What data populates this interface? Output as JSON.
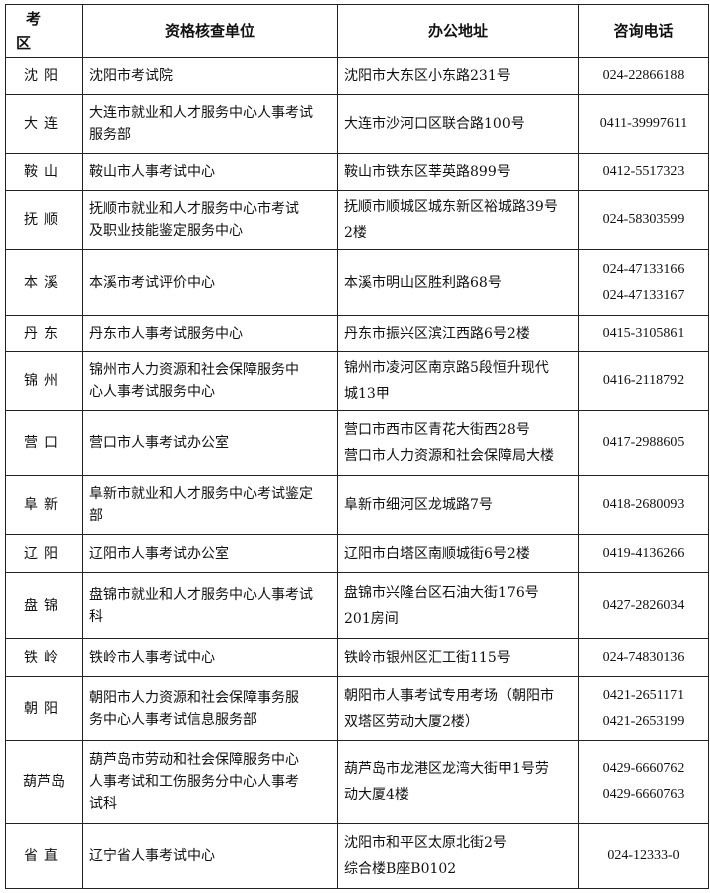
{
  "headers": {
    "area_line1": "考",
    "area_line2": "区",
    "unit": "资格核查单位",
    "address": "办公地址",
    "phone": "咨询电话"
  },
  "rows": [
    {
      "area": "沈阳",
      "unit": [
        "沈阳市考试院"
      ],
      "address": [
        "沈阳市大东区小东路231号"
      ],
      "phone": [
        "024-22866188"
      ]
    },
    {
      "area": "大连",
      "unit": [
        "大连市就业和人才服务中心人事考试",
        "服务部"
      ],
      "address": [
        "大连市沙河口区联合路100号"
      ],
      "phone": [
        "0411-39997611"
      ]
    },
    {
      "area": "鞍山",
      "unit": [
        "鞍山市人事考试中心"
      ],
      "address": [
        "鞍山市铁东区莘英路899号"
      ],
      "phone": [
        "0412-5517323"
      ]
    },
    {
      "area": "抚顺",
      "unit": [
        "抚顺市就业和人才服务中心市考试",
        "及职业技能鉴定服务中心"
      ],
      "address": [
        "抚顺市顺城区城东新区裕城路39号",
        "2楼"
      ],
      "phone": [
        "024-58303599"
      ]
    },
    {
      "area": "本溪",
      "unit": [
        "本溪市考试评价中心"
      ],
      "address": [
        "本溪市明山区胜利路68号"
      ],
      "phone": [
        "024-47133166",
        "024-47133167"
      ]
    },
    {
      "area": "丹东",
      "unit": [
        "丹东市人事考试服务中心"
      ],
      "address": [
        "丹东市振兴区滨江西路6号2楼"
      ],
      "phone": [
        "0415-3105861"
      ]
    },
    {
      "area": "锦州",
      "unit": [
        "锦州市人力资源和社会保障服务中",
        "心人事考试服务中心"
      ],
      "address": [
        "锦州市凌河区南京路5段恒升现代",
        "城13甲"
      ],
      "phone": [
        "0416-2118792"
      ]
    },
    {
      "area": "营口",
      "unit": [
        "营口市人事考试办公室"
      ],
      "address": [
        "营口市西市区青花大街西28号",
        "营口市人力资源和社会保障局大楼"
      ],
      "phone": [
        "0417-2988605"
      ]
    },
    {
      "area": "阜新",
      "unit": [
        "阜新市就业和人才服务中心考试鉴定",
        "部"
      ],
      "address": [
        "阜新市细河区龙城路7号"
      ],
      "phone": [
        "0418-2680093"
      ]
    },
    {
      "area": "辽阳",
      "unit": [
        "辽阳市人事考试办公室"
      ],
      "address": [
        "辽阳市白塔区南顺城街6号2楼"
      ],
      "phone": [
        "0419-4136266"
      ]
    },
    {
      "area": "盘锦",
      "unit": [
        "盘锦市就业和人才服务中心人事考试",
        "科"
      ],
      "address": [
        "盘锦市兴隆台区石油大街176号",
        "201房间"
      ],
      "phone": [
        "0427-2826034"
      ]
    },
    {
      "area": "铁岭",
      "unit": [
        "铁岭市人事考试中心"
      ],
      "address": [
        "铁岭市银州区汇工街115号"
      ],
      "phone": [
        "024-74830136"
      ]
    },
    {
      "area": "朝阳",
      "unit": [
        "朝阳市人力资源和社会保障事务服",
        "务中心人事考试信息服务部"
      ],
      "address": [
        "朝阳市人事考试专用考场（朝阳市",
        "双塔区劳动大厦2楼）"
      ],
      "phone": [
        "0421-2651171",
        "0421-2653199"
      ]
    },
    {
      "area": "葫芦岛",
      "unit": [
        "葫芦岛市劳动和社会保障服务中心",
        "人事考试和工伤服务分中心人事考",
        "试科"
      ],
      "address": [
        "葫芦岛市龙港区龙湾大街甲1号劳",
        "动大厦4楼"
      ],
      "phone": [
        "0429-6660762",
        "0429-6660763"
      ]
    },
    {
      "area": "省直",
      "unit": [
        "辽宁省人事考试中心"
      ],
      "address": [
        "沈阳市和平区太原北街2号",
        "综合楼B座B0102"
      ],
      "phone": [
        "024-12333-0"
      ]
    }
  ]
}
